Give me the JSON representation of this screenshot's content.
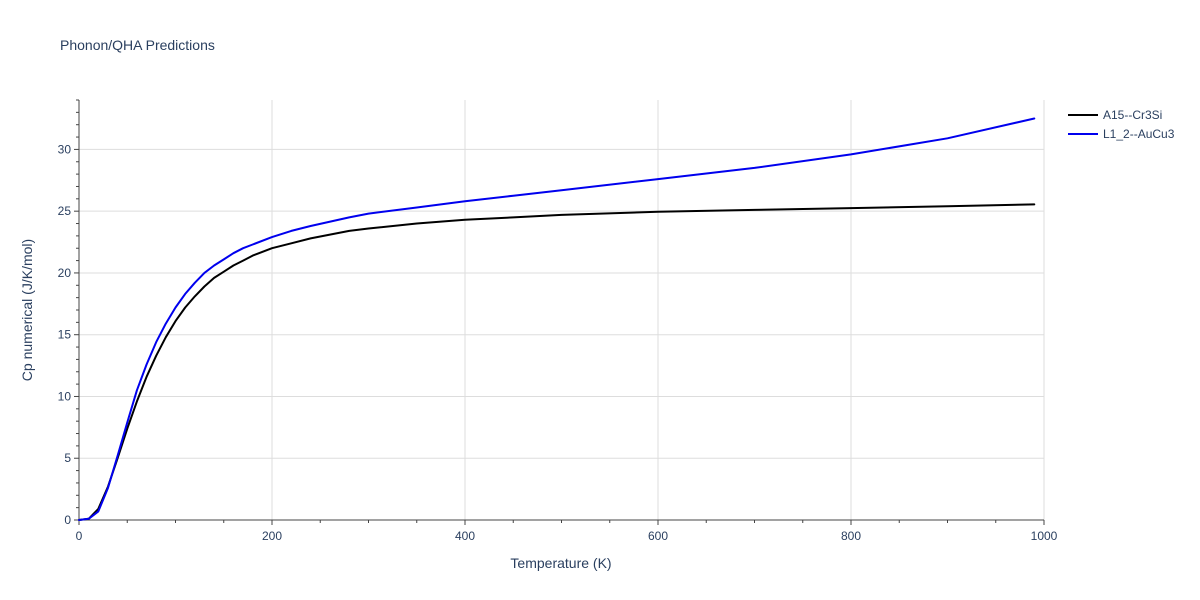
{
  "chart_data": {
    "type": "line",
    "title": "Phonon/QHA Predictions",
    "xlabel": "Temperature (K)",
    "ylabel": "Cp numerical (J/K/mol)",
    "xlim": [
      0,
      1000
    ],
    "ylim": [
      0,
      34
    ],
    "x_ticks": [
      0,
      200,
      400,
      600,
      800,
      1000
    ],
    "y_ticks": [
      0,
      5,
      10,
      15,
      20,
      25,
      30
    ],
    "grid": true,
    "legend_position": "top-right",
    "series": [
      {
        "name": "A15--Cr3Si",
        "color": "#000000",
        "x": [
          0,
          10,
          20,
          30,
          40,
          50,
          60,
          70,
          80,
          90,
          100,
          110,
          120,
          130,
          140,
          150,
          160,
          170,
          180,
          200,
          220,
          240,
          280,
          300,
          350,
          400,
          450,
          500,
          600,
          700,
          800,
          900,
          990
        ],
        "y": [
          0,
          0.1,
          0.9,
          2.7,
          5.0,
          7.4,
          9.6,
          11.6,
          13.3,
          14.8,
          16.1,
          17.2,
          18.1,
          18.9,
          19.6,
          20.1,
          20.6,
          21.0,
          21.4,
          22.0,
          22.4,
          22.8,
          23.4,
          23.6,
          24.0,
          24.3,
          24.5,
          24.7,
          24.95,
          25.1,
          25.25,
          25.4,
          25.55
        ]
      },
      {
        "name": "L1_2--AuCu3",
        "color": "#0000ee",
        "x": [
          0,
          10,
          20,
          30,
          40,
          50,
          60,
          70,
          80,
          90,
          100,
          110,
          120,
          130,
          140,
          150,
          160,
          170,
          180,
          200,
          220,
          240,
          280,
          300,
          350,
          400,
          450,
          500,
          600,
          700,
          800,
          900,
          990
        ],
        "y": [
          0,
          0.1,
          0.7,
          2.6,
          5.2,
          7.9,
          10.5,
          12.6,
          14.4,
          15.9,
          17.2,
          18.3,
          19.2,
          20.0,
          20.6,
          21.1,
          21.6,
          22.0,
          22.3,
          22.9,
          23.4,
          23.8,
          24.5,
          24.8,
          25.3,
          25.8,
          26.25,
          26.7,
          27.6,
          28.5,
          29.6,
          30.9,
          32.5
        ]
      }
    ]
  }
}
